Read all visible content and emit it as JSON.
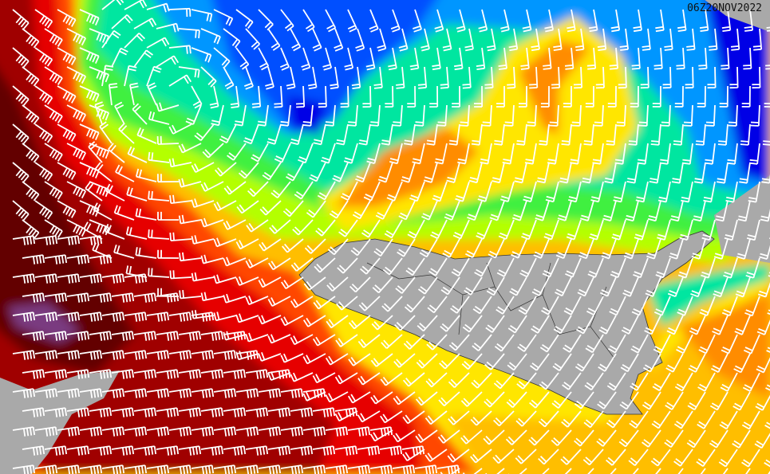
{
  "map": {
    "timestamp": "06Z20NOV2022",
    "palette": {
      "land": "#a9a9a9",
      "deep_blue": "#0000e6",
      "blue": "#0050ff",
      "sky_blue": "#0096ff",
      "aqua": "#00e6a0",
      "green": "#40f040",
      "yellow_green": "#b4ff00",
      "yellow": "#ffe600",
      "gold": "#ffbe00",
      "orange": "#ff8c00",
      "red_orange": "#ff4600",
      "red": "#e60000",
      "dark_red": "#a00000",
      "maroon": "#640000",
      "purple": "#7a3a80",
      "barb": "#ffffff"
    }
  }
}
